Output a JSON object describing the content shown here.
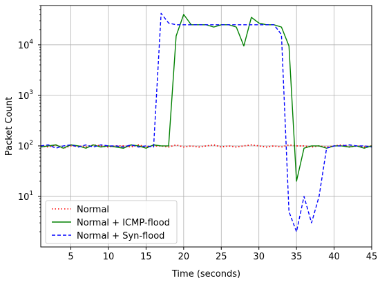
{
  "chart_data": {
    "type": "line",
    "title": "",
    "xlabel": "Time (seconds)",
    "ylabel": "Packet Count",
    "xlim": [
      1,
      45
    ],
    "ylim": [
      1,
      60000
    ],
    "yscale": "log",
    "grid": true,
    "legend_position": "lower-left",
    "x_ticks": [
      5,
      10,
      15,
      20,
      25,
      30,
      35,
      40,
      45
    ],
    "y_ticks": [
      {
        "value": 10,
        "base": "10",
        "exp": "1"
      },
      {
        "value": 100,
        "base": "10",
        "exp": "2"
      },
      {
        "value": 1000,
        "base": "10",
        "exp": "3"
      },
      {
        "value": 10000,
        "base": "10",
        "exp": "4"
      }
    ],
    "series": [
      {
        "name": "Normal",
        "color": "#ff0000",
        "style": "dotted",
        "x": [
          1,
          2,
          3,
          4,
          5,
          6,
          7,
          8,
          9,
          10,
          11,
          12,
          13,
          14,
          15,
          16,
          17,
          18,
          19,
          20,
          21,
          22,
          23,
          24,
          25,
          26,
          27,
          28,
          29,
          30,
          31,
          32,
          33,
          34,
          35,
          36,
          37,
          38,
          39,
          40,
          41,
          42,
          43,
          44,
          45
        ],
        "y": [
          100,
          95,
          105,
          90,
          100,
          100,
          95,
          105,
          100,
          95,
          100,
          100,
          95,
          105,
          95,
          100,
          100,
          95,
          105,
          95,
          100,
          95,
          100,
          105,
          95,
          100,
          95,
          100,
          105,
          100,
          95,
          100,
          95,
          105,
          100,
          100,
          95,
          100,
          95,
          100,
          105,
          95,
          100,
          95,
          100
        ]
      },
      {
        "name": "Normal + ICMP-flood",
        "color": "#008000",
        "style": "solid",
        "x": [
          1,
          2,
          3,
          4,
          5,
          6,
          7,
          8,
          9,
          10,
          11,
          12,
          13,
          14,
          15,
          16,
          17,
          18,
          19,
          20,
          21,
          22,
          23,
          24,
          25,
          26,
          27,
          28,
          29,
          30,
          31,
          32,
          33,
          34,
          35,
          36,
          37,
          38,
          39,
          40,
          41,
          42,
          43,
          44,
          45
        ],
        "y": [
          95,
          100,
          105,
          90,
          105,
          100,
          90,
          105,
          95,
          100,
          95,
          90,
          105,
          100,
          90,
          105,
          100,
          100,
          15000,
          40000,
          25000,
          25000,
          25000,
          22500,
          25000,
          25000,
          22500,
          9500,
          35000,
          27000,
          25000,
          25000,
          22500,
          9500,
          20,
          90,
          100,
          100,
          90,
          100,
          100,
          95,
          100,
          90,
          100
        ]
      },
      {
        "name": "Normal + Syn-flood",
        "color": "#0000ff",
        "style": "dashed",
        "x": [
          1,
          2,
          3,
          4,
          5,
          6,
          7,
          8,
          9,
          10,
          11,
          12,
          13,
          14,
          15,
          16,
          17,
          18,
          19,
          20,
          21,
          22,
          23,
          24,
          25,
          26,
          27,
          28,
          29,
          30,
          31,
          32,
          33,
          34,
          35,
          36,
          37,
          38,
          39,
          40,
          41,
          42,
          43,
          44,
          45
        ],
        "y": [
          100,
          105,
          90,
          100,
          105,
          95,
          105,
          95,
          105,
          100,
          100,
          95,
          105,
          95,
          100,
          95,
          42000,
          27000,
          25000,
          25000,
          25000,
          25000,
          25000,
          25000,
          25000,
          25000,
          25000,
          25000,
          25000,
          25000,
          25000,
          25000,
          16000,
          5,
          2,
          10,
          3,
          10,
          90,
          100,
          100,
          105,
          100,
          100,
          95
        ]
      }
    ]
  }
}
